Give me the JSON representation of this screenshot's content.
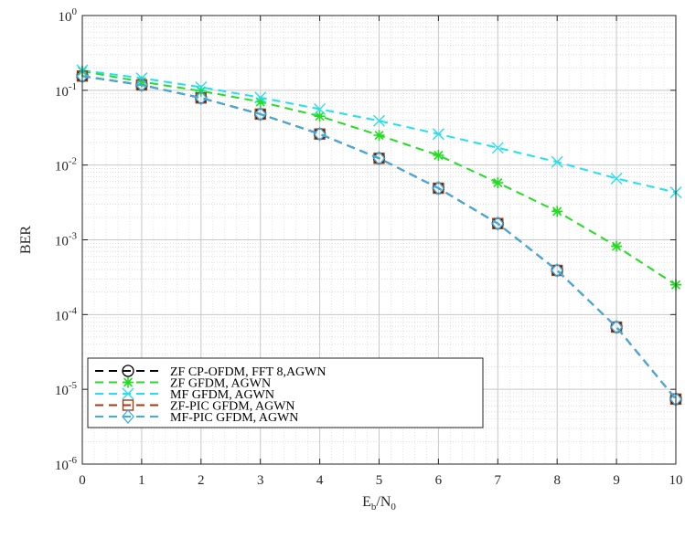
{
  "chart_data": {
    "type": "line",
    "title": "",
    "xlabel": "E",
    "xlabel_sub1": "b",
    "xlabel_sep": "/N",
    "xlabel_sub2": "0",
    "ylabel": "BER",
    "xlim": [
      0,
      10
    ],
    "ylim": [
      1e-06,
      1
    ],
    "yscale": "log",
    "grid": true,
    "minor_grid": true,
    "legend_position": "bottom-left",
    "x": [
      0,
      1,
      2,
      3,
      4,
      5,
      6,
      7,
      8,
      9,
      10
    ],
    "xticks": [
      "0",
      "1",
      "2",
      "3",
      "4",
      "5",
      "6",
      "7",
      "8",
      "9",
      "10"
    ],
    "yticks": [
      {
        "base": "10",
        "exp": "0"
      },
      {
        "base": "10",
        "exp": "-1"
      },
      {
        "base": "10",
        "exp": "-2"
      },
      {
        "base": "10",
        "exp": "-3"
      },
      {
        "base": "10",
        "exp": "-4"
      },
      {
        "base": "10",
        "exp": "-5"
      },
      {
        "base": "10",
        "exp": "-6"
      }
    ],
    "series": [
      {
        "name": "ZF CP-OFDM, FFT 8,AGWN",
        "color": "#000000",
        "marker": "circle",
        "values": [
          0.155,
          0.118,
          0.079,
          0.048,
          0.026,
          0.0123,
          0.0049,
          0.00165,
          0.00039,
          6.8e-05,
          7.4e-06
        ]
      },
      {
        "name": "ZF GFDM, AGWN",
        "color": "#22dd22",
        "marker": "asterisk",
        "values": [
          0.18,
          0.13,
          0.098,
          0.07,
          0.045,
          0.025,
          0.0135,
          0.0058,
          0.0024,
          0.00082,
          0.00025
        ]
      },
      {
        "name": "MF GFDM, AGWN",
        "color": "#22e0ee",
        "marker": "x",
        "values": [
          0.185,
          0.145,
          0.11,
          0.08,
          0.056,
          0.039,
          0.026,
          0.017,
          0.011,
          0.0066,
          0.0043
        ]
      },
      {
        "name": "ZF-PIC GFDM, AGWN",
        "color": "#a03a10",
        "marker": "square",
        "values": [
          0.155,
          0.118,
          0.079,
          0.048,
          0.026,
          0.0123,
          0.0049,
          0.00165,
          0.00039,
          6.8e-05,
          7.4e-06
        ]
      },
      {
        "name": "MF-PIC GFDM, AGWN",
        "color": "#3aaee8",
        "marker": "diamond",
        "values": [
          0.155,
          0.118,
          0.079,
          0.048,
          0.026,
          0.0123,
          0.0049,
          0.00165,
          0.00039,
          6.8e-05,
          7.4e-06
        ]
      }
    ]
  }
}
